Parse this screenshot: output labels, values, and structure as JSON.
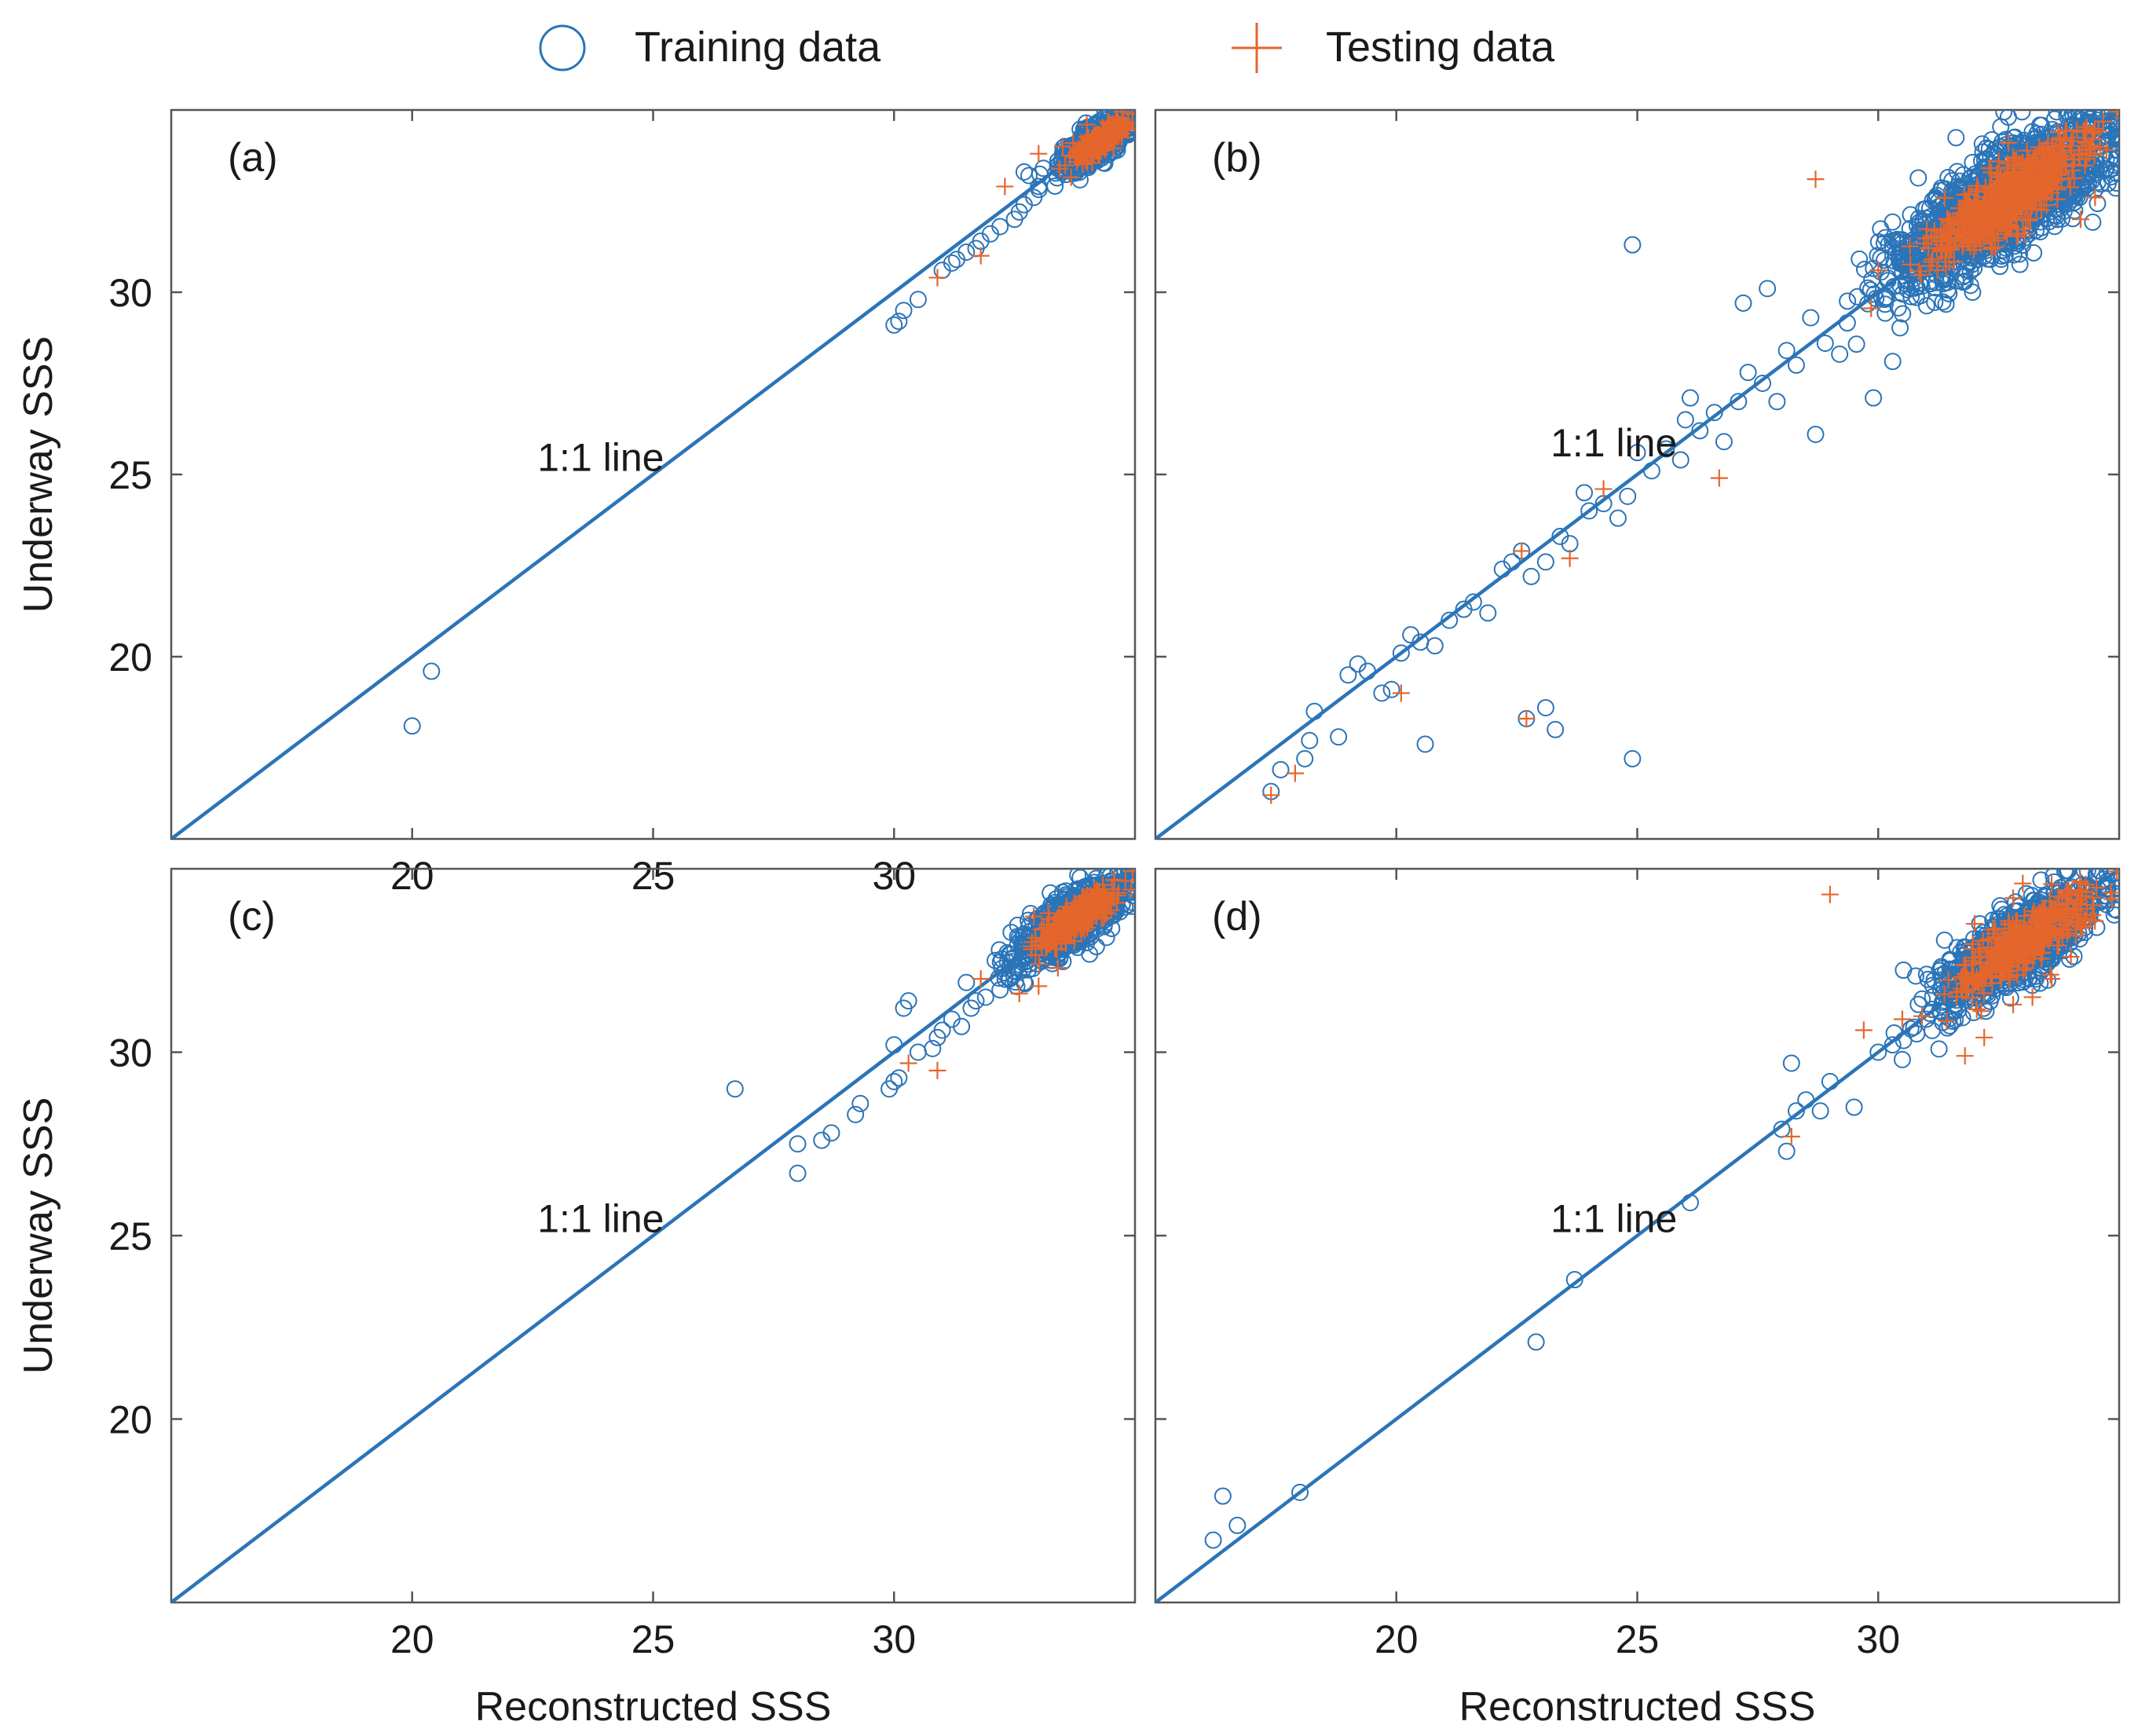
{
  "colors": {
    "training": "#2b74b8",
    "testing": "#e4662c",
    "line": "#2b74b8",
    "frame": "#555555"
  },
  "legend": [
    {
      "name": "training",
      "label": "Training data",
      "marker": "circle"
    },
    {
      "name": "testing",
      "label": "Testing data",
      "marker": "plus"
    }
  ],
  "chart_data": [
    {
      "type": "scatter",
      "panel_label": "(a)",
      "xlabel": "Reconstructed SSS",
      "ylabel": "Underway SSS",
      "xlim": [
        15,
        35
      ],
      "ylim": [
        15,
        35
      ],
      "xticks": [
        20,
        25,
        30
      ],
      "yticks": [
        20,
        25,
        30
      ],
      "show_xtick_labels": true,
      "show_ytick_labels": true,
      "show_xlabel": false,
      "show_ylabel": true,
      "line_label": "1:1 line",
      "line_label_pos": [
        22.6,
        25.1
      ],
      "cluster": {
        "center": [
          34.2,
          34.1
        ],
        "spread_x": 0.5,
        "spread_y": 0.5,
        "train_n": 700,
        "test_n": 260,
        "test_scale": 0.75
      },
      "training_points": [
        [
          20.0,
          18.1
        ],
        [
          20.4,
          19.6
        ],
        [
          30.0,
          29.1
        ],
        [
          30.1,
          29.2
        ],
        [
          30.2,
          29.5
        ],
        [
          30.5,
          29.8
        ],
        [
          31.0,
          30.6
        ],
        [
          31.2,
          30.8
        ],
        [
          31.3,
          30.9
        ],
        [
          31.5,
          31.1
        ],
        [
          31.7,
          31.2
        ],
        [
          31.8,
          31.4
        ],
        [
          32.0,
          31.6
        ],
        [
          32.2,
          31.8
        ],
        [
          32.5,
          32.0
        ],
        [
          32.6,
          32.2
        ],
        [
          32.7,
          32.4
        ],
        [
          32.9,
          32.6
        ],
        [
          33.0,
          32.9
        ],
        [
          32.8,
          33.2
        ],
        [
          32.7,
          33.3
        ],
        [
          33.1,
          33.4
        ],
        [
          33.4,
          33.6
        ],
        [
          34.8,
          35.0
        ],
        [
          34.7,
          34.9
        ]
      ],
      "testing_points": [
        [
          30.9,
          30.4
        ],
        [
          31.8,
          31.0
        ],
        [
          32.3,
          32.9
        ],
        [
          33.5,
          34.0
        ],
        [
          34.0,
          34.6
        ],
        [
          33.0,
          33.8
        ]
      ]
    },
    {
      "type": "scatter",
      "panel_label": "(b)",
      "xlabel": "Reconstructed SSS",
      "ylabel": "Underway SSS",
      "xlim": [
        15,
        35
      ],
      "ylim": [
        15,
        35
      ],
      "xticks": [
        20,
        25,
        30
      ],
      "yticks": [
        20,
        25,
        30
      ],
      "show_xtick_labels": false,
      "show_ytick_labels": false,
      "show_xlabel": false,
      "show_ylabel": false,
      "line_label": "1:1 line",
      "line_label_pos": [
        23.2,
        25.5
      ],
      "cluster": {
        "center": [
          32.6,
          32.5
        ],
        "spread_x": 1.5,
        "spread_y": 1.5,
        "train_n": 1800,
        "test_n": 650,
        "test_scale": 0.7
      },
      "training_points": [
        [
          17.4,
          16.3
        ],
        [
          17.6,
          16.9
        ],
        [
          18.1,
          17.2
        ],
        [
          18.2,
          17.7
        ],
        [
          18.3,
          18.5
        ],
        [
          18.8,
          17.8
        ],
        [
          19.0,
          19.5
        ],
        [
          19.2,
          19.8
        ],
        [
          19.4,
          19.6
        ],
        [
          19.7,
          19.0
        ],
        [
          19.9,
          19.1
        ],
        [
          20.1,
          20.1
        ],
        [
          20.3,
          20.6
        ],
        [
          20.5,
          20.4
        ],
        [
          20.8,
          20.3
        ],
        [
          21.1,
          21.0
        ],
        [
          21.4,
          21.3
        ],
        [
          21.6,
          21.5
        ],
        [
          21.9,
          21.2
        ],
        [
          22.2,
          22.4
        ],
        [
          22.4,
          22.6
        ],
        [
          22.6,
          22.9
        ],
        [
          22.8,
          22.2
        ],
        [
          23.1,
          22.6
        ],
        [
          23.4,
          23.3
        ],
        [
          23.6,
          23.1
        ],
        [
          23.9,
          24.5
        ],
        [
          24.0,
          24.0
        ],
        [
          24.3,
          24.2
        ],
        [
          24.6,
          23.8
        ],
        [
          24.8,
          24.4
        ],
        [
          25.0,
          25.6
        ],
        [
          25.3,
          25.1
        ],
        [
          25.6,
          25.7
        ],
        [
          25.9,
          25.4
        ],
        [
          26.0,
          26.5
        ],
        [
          26.3,
          26.2
        ],
        [
          26.6,
          26.7
        ],
        [
          26.8,
          25.9
        ],
        [
          27.1,
          27.0
        ],
        [
          27.3,
          27.8
        ],
        [
          27.6,
          27.5
        ],
        [
          27.9,
          27.0
        ],
        [
          28.1,
          28.4
        ],
        [
          28.3,
          28.0
        ],
        [
          28.6,
          29.3
        ],
        [
          28.9,
          28.6
        ],
        [
          29.2,
          28.3
        ],
        [
          22.7,
          18.3
        ],
        [
          23.1,
          18.6
        ],
        [
          23.3,
          18.0
        ],
        [
          24.9,
          17.2
        ],
        [
          20.6,
          17.6
        ],
        [
          24.9,
          31.3
        ],
        [
          26.1,
          27.1
        ],
        [
          27.2,
          29.7
        ],
        [
          27.7,
          30.1
        ],
        [
          28.7,
          26.1
        ],
        [
          29.9,
          27.1
        ],
        [
          30.3,
          28.1
        ]
      ],
      "testing_points": [
        [
          17.4,
          16.2
        ],
        [
          17.9,
          16.8
        ],
        [
          20.1,
          19.0
        ],
        [
          22.6,
          22.9
        ],
        [
          22.7,
          18.3
        ],
        [
          23.6,
          22.7
        ],
        [
          24.3,
          24.6
        ],
        [
          26.7,
          24.9
        ],
        [
          28.7,
          33.1
        ],
        [
          30.0,
          30.6
        ],
        [
          32.7,
          34.1
        ],
        [
          34.5,
          32.6
        ],
        [
          34.2,
          32.0
        ],
        [
          33.8,
          33.1
        ]
      ]
    },
    {
      "type": "scatter",
      "panel_label": "(c)",
      "xlabel": "Reconstructed SSS",
      "ylabel": "Underway SSS",
      "xlim": [
        15,
        35
      ],
      "ylim": [
        15,
        35
      ],
      "xticks": [
        20,
        25,
        30
      ],
      "yticks": [
        20,
        25,
        30
      ],
      "show_xtick_labels": true,
      "show_ytick_labels": true,
      "show_xlabel": true,
      "show_ylabel": true,
      "line_label": "1:1 line",
      "line_label_pos": [
        22.6,
        25.1
      ],
      "cluster": {
        "center": [
          33.7,
          33.6
        ],
        "spread_x": 0.75,
        "spread_y": 0.75,
        "train_n": 900,
        "test_n": 320,
        "test_scale": 0.75
      },
      "training_points": [
        [
          26.7,
          29.0
        ],
        [
          28.0,
          26.7
        ],
        [
          28.0,
          27.5
        ],
        [
          28.5,
          27.6
        ],
        [
          28.7,
          27.8
        ],
        [
          29.2,
          28.3
        ],
        [
          29.3,
          28.6
        ],
        [
          29.9,
          29.0
        ],
        [
          30.0,
          29.2
        ],
        [
          30.1,
          29.3
        ],
        [
          30.0,
          30.2
        ],
        [
          30.2,
          31.2
        ],
        [
          30.3,
          31.4
        ],
        [
          30.5,
          30.0
        ],
        [
          30.8,
          30.1
        ],
        [
          30.9,
          30.4
        ],
        [
          31.0,
          30.6
        ],
        [
          31.2,
          30.9
        ],
        [
          31.4,
          30.7
        ],
        [
          31.5,
          31.9
        ],
        [
          31.6,
          31.2
        ],
        [
          31.7,
          31.4
        ],
        [
          31.9,
          31.5
        ],
        [
          32.1,
          32.5
        ],
        [
          32.2,
          31.7
        ],
        [
          32.4,
          32.0
        ],
        [
          32.5,
          32.2
        ],
        [
          32.8,
          32.4
        ],
        [
          32.7,
          31.9
        ],
        [
          34.9,
          35.0
        ]
      ],
      "testing_points": [
        [
          30.3,
          29.7
        ],
        [
          30.9,
          29.5
        ],
        [
          31.8,
          32.0
        ],
        [
          32.6,
          31.6
        ],
        [
          33.0,
          31.8
        ],
        [
          32.9,
          33.7
        ],
        [
          33.4,
          32.3
        ]
      ]
    },
    {
      "type": "scatter",
      "panel_label": "(d)",
      "xlabel": "Reconstructed SSS",
      "ylabel": "Underway SSS",
      "xlim": [
        15,
        35
      ],
      "ylim": [
        15,
        35
      ],
      "xticks": [
        20,
        25,
        30
      ],
      "yticks": [
        20,
        25,
        30
      ],
      "show_xtick_labels": true,
      "show_ytick_labels": false,
      "show_xlabel": true,
      "show_ylabel": false,
      "line_label": "1:1 line",
      "line_label_pos": [
        23.2,
        25.1
      ],
      "cluster": {
        "center": [
          32.9,
          32.9
        ],
        "spread_x": 1.1,
        "spread_y": 1.1,
        "train_n": 1100,
        "test_n": 420,
        "test_scale": 0.85
      },
      "training_points": [
        [
          16.2,
          16.7
        ],
        [
          16.4,
          17.9
        ],
        [
          16.7,
          17.1
        ],
        [
          18.0,
          18.0
        ],
        [
          22.9,
          22.1
        ],
        [
          23.7,
          23.8
        ],
        [
          26.1,
          25.9
        ],
        [
          28.0,
          27.9
        ],
        [
          28.1,
          27.3
        ],
        [
          28.2,
          29.7
        ],
        [
          28.3,
          28.4
        ],
        [
          28.5,
          28.7
        ],
        [
          28.8,
          28.4
        ],
        [
          29.0,
          29.2
        ],
        [
          29.5,
          28.5
        ],
        [
          30.0,
          30.0
        ],
        [
          30.3,
          30.2
        ],
        [
          30.5,
          29.8
        ],
        [
          30.8,
          30.5
        ],
        [
          31.0,
          30.9
        ],
        [
          31.3,
          31.1
        ],
        [
          31.5,
          31.7
        ],
        [
          31.8,
          31.6
        ],
        [
          32.0,
          32.2
        ]
      ],
      "testing_points": [
        [
          28.2,
          27.7
        ],
        [
          29.0,
          34.3
        ],
        [
          29.7,
          30.6
        ],
        [
          30.5,
          30.9
        ],
        [
          31.8,
          29.9
        ],
        [
          32.2,
          30.4
        ],
        [
          32.8,
          31.3
        ],
        [
          33.2,
          31.5
        ],
        [
          33.6,
          32.0
        ],
        [
          34.0,
          32.6
        ],
        [
          34.4,
          33.6
        ],
        [
          32.0,
          33.5
        ],
        [
          33.0,
          34.6
        ],
        [
          32.8,
          34.2
        ]
      ]
    }
  ]
}
